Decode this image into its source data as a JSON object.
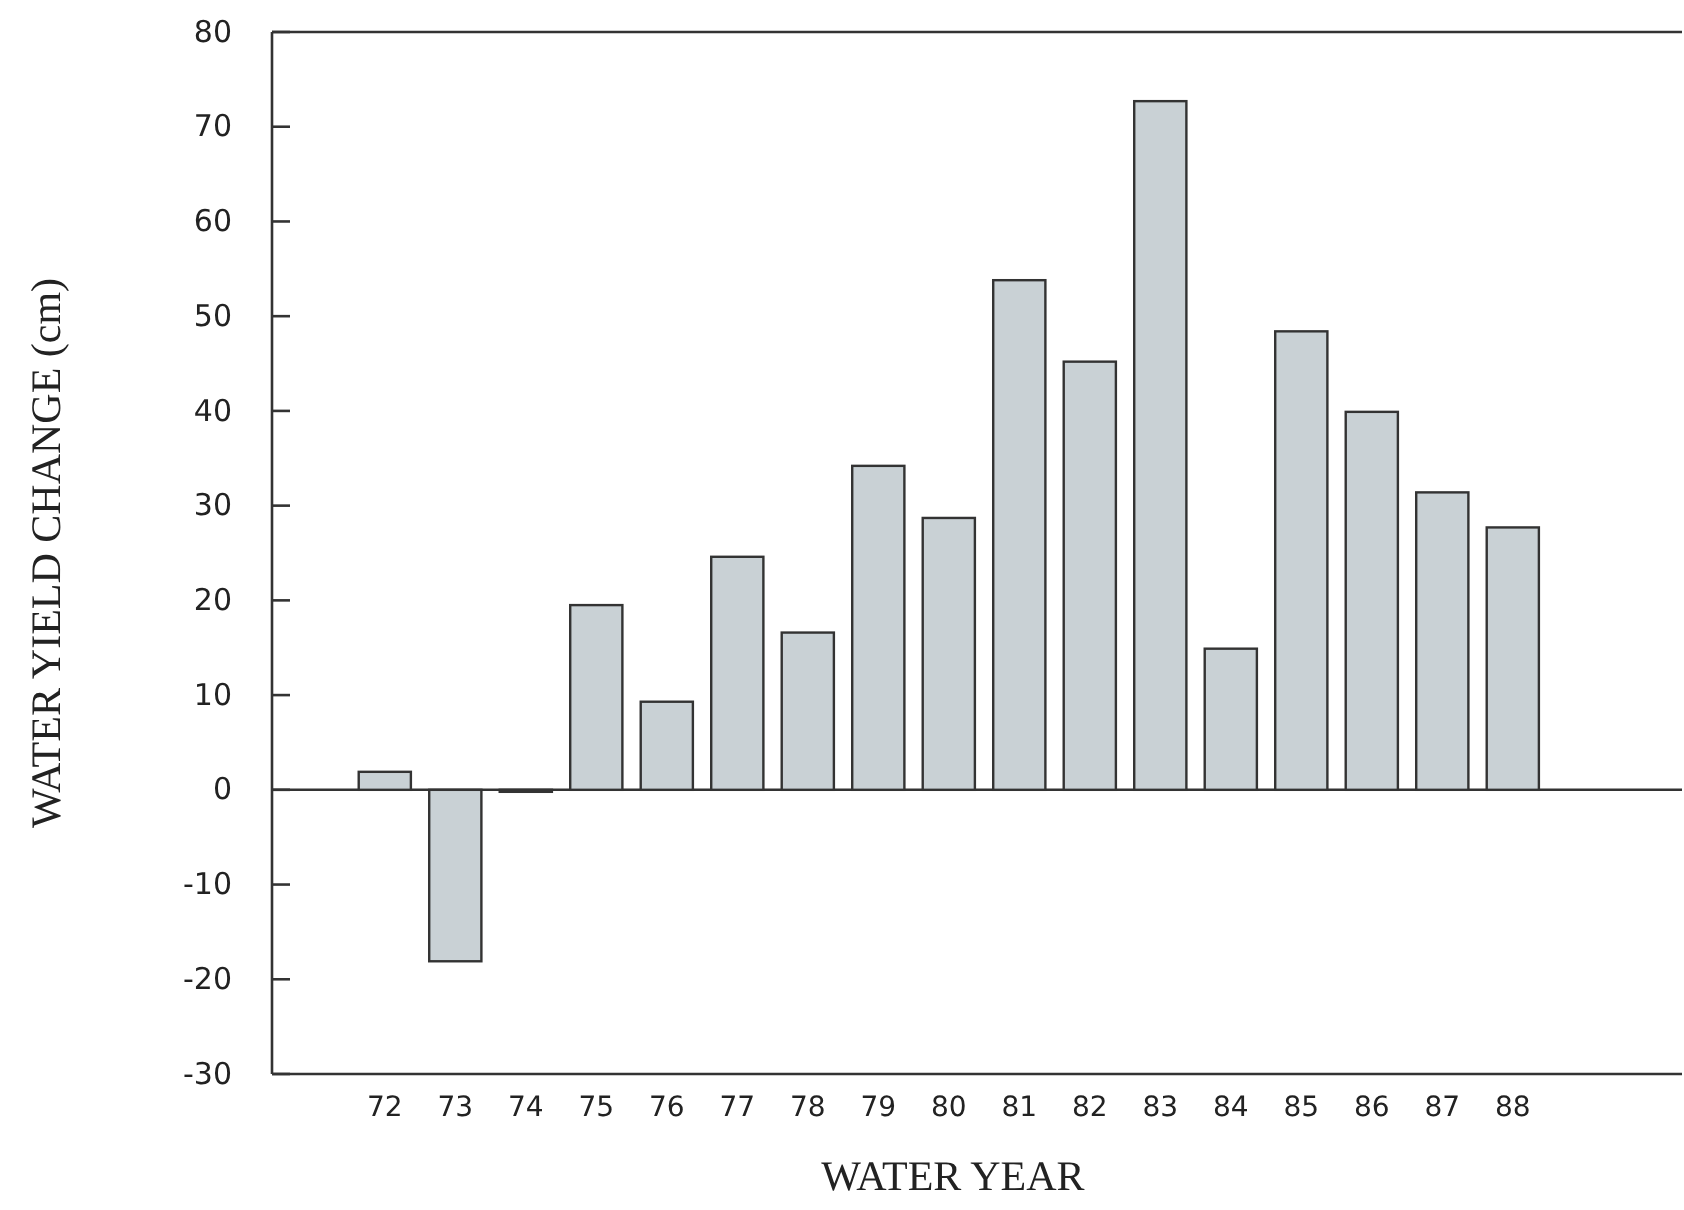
{
  "chart_data": {
    "type": "bar",
    "xlabel": "WATER YEAR",
    "ylabel": "WATER YIELD CHANGE (cm)",
    "categories": [
      "72",
      "73",
      "74",
      "75",
      "76",
      "77",
      "78",
      "79",
      "80",
      "81",
      "82",
      "83",
      "84",
      "85",
      "86",
      "87",
      "88"
    ],
    "values": [
      1.9,
      -18.1,
      -0.2,
      19.5,
      9.3,
      24.6,
      16.6,
      34.2,
      28.7,
      53.8,
      45.2,
      72.7,
      14.9,
      48.4,
      39.9,
      31.4,
      27.7
    ],
    "color": "#c9d1d5",
    "ylim": [
      -30,
      80
    ],
    "yticks": [
      -30,
      -20,
      -10,
      0,
      10,
      20,
      30,
      40,
      50,
      60,
      70,
      80
    ]
  }
}
